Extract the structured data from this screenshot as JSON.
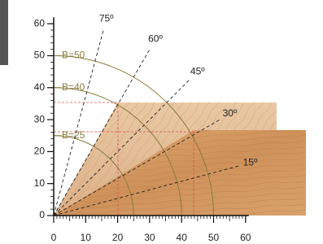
{
  "axes": {
    "xticks": [
      0,
      10,
      20,
      30,
      40,
      50,
      60
    ],
    "yticks": [
      0,
      10,
      20,
      30,
      40,
      50,
      60
    ]
  },
  "angles": [
    {
      "value": 75,
      "label": "75º"
    },
    {
      "value": 60,
      "label": "60º"
    },
    {
      "value": 45,
      "label": "45º"
    },
    {
      "value": 30,
      "label": "30º"
    },
    {
      "value": 15,
      "label": "15º"
    }
  ],
  "radii": [
    {
      "value": 50,
      "label": "B=50"
    },
    {
      "value": 40,
      "label": "B=40"
    },
    {
      "value": 25,
      "label": "B=25"
    }
  ]
}
